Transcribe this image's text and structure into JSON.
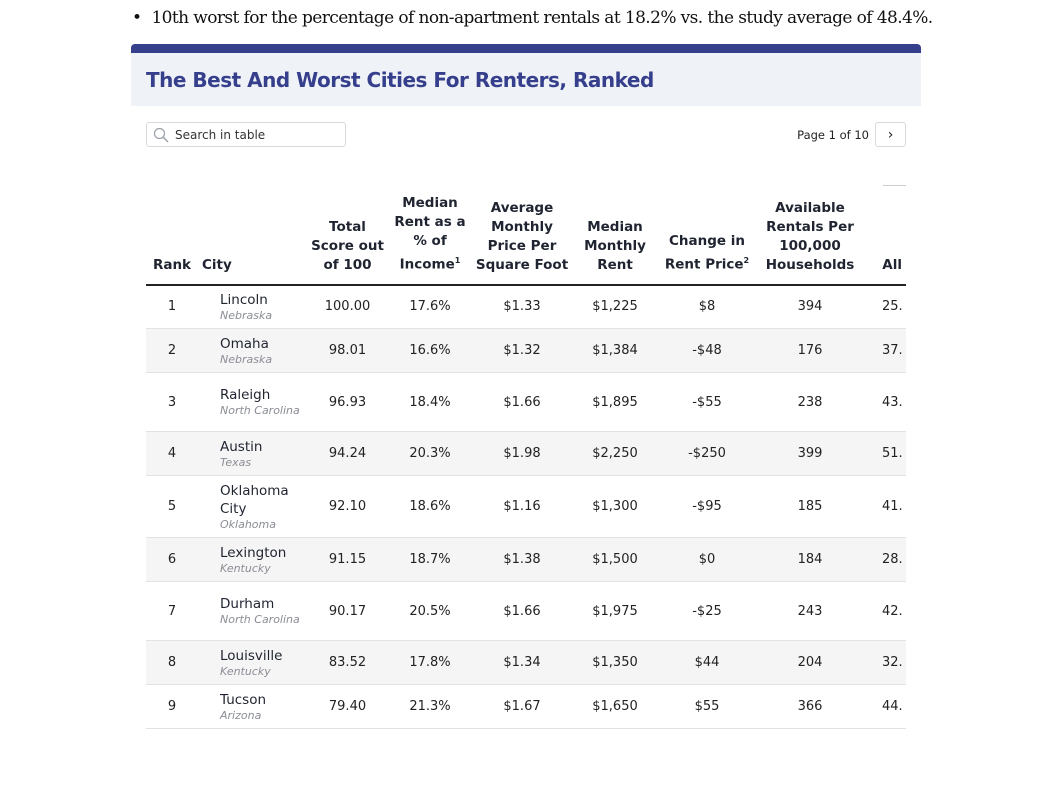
{
  "bullet": "10th worst for the percentage of non-apartment rentals at 18.2% vs. the study average of 48.4%.",
  "title": "The Best And Worst Cities For Renters, Ranked",
  "search": {
    "placeholder": "Search in table",
    "icon": "search-icon"
  },
  "pager": {
    "label": "Page 1 of 10",
    "next_icon": "chevron-right-icon"
  },
  "colors": {
    "accent": "#363f8c",
    "header_bg": "#eff2f7",
    "stripe": "#f5f5f5"
  },
  "columns": [
    {
      "label": "Rank"
    },
    {
      "label": "City"
    },
    {
      "label": "Total Score out of 100"
    },
    {
      "label": "Median Rent as a % of Income",
      "sup": "1"
    },
    {
      "label": "Average Monthly Price Per Square Foot"
    },
    {
      "label": "Median Monthly Rent"
    },
    {
      "label": "Change in Rent Price",
      "sup": "2"
    },
    {
      "label": "Available Rentals Per 100,000 Households"
    },
    {
      "label": "All Pe"
    }
  ],
  "rows": [
    {
      "rank": "1",
      "city": "Lincoln",
      "state": "Nebraska",
      "score": "100.00",
      "pct": "17.6%",
      "psf": "$1.33",
      "rent": "$1,225",
      "change": "$8",
      "avail": "394",
      "last": "25."
    },
    {
      "rank": "2",
      "city": "Omaha",
      "state": "Nebraska",
      "score": "98.01",
      "pct": "16.6%",
      "psf": "$1.32",
      "rent": "$1,384",
      "change": "-$48",
      "avail": "176",
      "last": "37."
    },
    {
      "rank": "3",
      "city": "Raleigh",
      "state": "North Carolina",
      "score": "96.93",
      "pct": "18.4%",
      "psf": "$1.66",
      "rent": "$1,895",
      "change": "-$55",
      "avail": "238",
      "last": "43."
    },
    {
      "rank": "4",
      "city": "Austin",
      "state": "Texas",
      "score": "94.24",
      "pct": "20.3%",
      "psf": "$1.98",
      "rent": "$2,250",
      "change": "-$250",
      "avail": "399",
      "last": "51."
    },
    {
      "rank": "5",
      "city": "Oklahoma City",
      "state": "Oklahoma",
      "score": "92.10",
      "pct": "18.6%",
      "psf": "$1.16",
      "rent": "$1,300",
      "change": "-$95",
      "avail": "185",
      "last": "41."
    },
    {
      "rank": "6",
      "city": "Lexington",
      "state": "Kentucky",
      "score": "91.15",
      "pct": "18.7%",
      "psf": "$1.38",
      "rent": "$1,500",
      "change": "$0",
      "avail": "184",
      "last": "28."
    },
    {
      "rank": "7",
      "city": "Durham",
      "state": "North Carolina",
      "score": "90.17",
      "pct": "20.5%",
      "psf": "$1.66",
      "rent": "$1,975",
      "change": "-$25",
      "avail": "243",
      "last": "42."
    },
    {
      "rank": "8",
      "city": "Louisville",
      "state": "Kentucky",
      "score": "83.52",
      "pct": "17.8%",
      "psf": "$1.34",
      "rent": "$1,350",
      "change": "$44",
      "avail": "204",
      "last": "32."
    },
    {
      "rank": "9",
      "city": "Tucson",
      "state": "Arizona",
      "score": "79.40",
      "pct": "21.3%",
      "psf": "$1.67",
      "rent": "$1,650",
      "change": "$55",
      "avail": "366",
      "last": "44."
    }
  ]
}
